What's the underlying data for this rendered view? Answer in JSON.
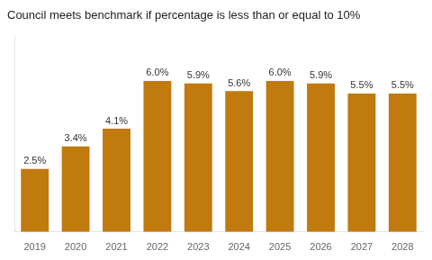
{
  "chart_data": {
    "type": "bar",
    "title": "Council meets benchmark if percentage is less than or equal to 10%",
    "categories": [
      "2019",
      "2020",
      "2021",
      "2022",
      "2023",
      "2024",
      "2025",
      "2026",
      "2027",
      "2028"
    ],
    "values": [
      2.5,
      3.4,
      4.1,
      6.0,
      5.9,
      5.6,
      6.0,
      5.9,
      5.5,
      5.5
    ],
    "value_labels": [
      "2.5%",
      "3.4%",
      "4.1%",
      "6.0%",
      "5.9%",
      "5.6%",
      "6.0%",
      "5.9%",
      "5.5%",
      "5.5%"
    ],
    "color": "#C07A0E",
    "ylim": [
      0,
      7.8
    ],
    "grid": false,
    "data_labels": true,
    "tick_labels": "x"
  }
}
